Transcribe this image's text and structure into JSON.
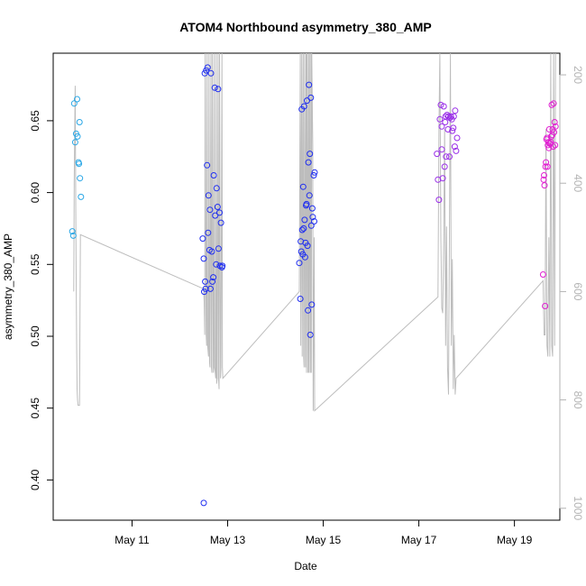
{
  "chart_data": {
    "type": "scatter",
    "title": "ATOM4 Northbound asymmetry_380_AMP",
    "xlabel": "Date",
    "ylabel": "asymmetry_380_AMP",
    "x_unit": "day of May",
    "xlim": [
      9.35,
      19.95
    ],
    "ylim": [
      0.372,
      0.697
    ],
    "x_ticks": [
      11,
      13,
      15,
      17,
      19
    ],
    "x_tick_labels": [
      "May 11",
      "May 13",
      "May 15",
      "May 17",
      "May 19"
    ],
    "y_ticks": [
      0.4,
      0.45,
      0.5,
      0.55,
      0.6,
      0.65
    ],
    "y_tick_labels": [
      "0.40",
      "0.45",
      "0.50",
      "0.55",
      "0.60",
      "0.65"
    ],
    "y2_lim": [
      1022,
      160
    ],
    "y2_ticks": [
      200,
      400,
      600,
      800,
      1000
    ],
    "y2_tick_labels": [
      "200",
      "400",
      "600",
      "800",
      "1000"
    ],
    "grid": false,
    "legend": "none",
    "colors": {
      "series": [
        "#29a7e6",
        "#1f2ef0",
        "#9a2ee8",
        "#e11fd2"
      ],
      "secondary_line": "#bdbdbd",
      "axis": "#000000",
      "axis_right": "#b3b3b3"
    },
    "series": [
      {
        "color": "#29a7e6",
        "x": [
          9.75,
          9.77,
          9.79,
          9.81,
          9.83,
          9.85,
          9.86,
          9.88,
          9.89,
          9.9,
          9.91,
          9.93
        ],
        "y": [
          0.573,
          0.57,
          0.662,
          0.635,
          0.641,
          0.665,
          0.639,
          0.621,
          0.62,
          0.649,
          0.61,
          0.597
        ]
      },
      {
        "color": "#1f2ef0",
        "x": [
          12.48,
          12.5,
          12.51,
          12.52,
          12.53,
          12.54,
          12.55,
          12.57,
          12.58,
          12.59,
          12.6,
          12.62,
          12.63,
          12.64,
          12.65,
          12.67,
          12.68,
          12.7,
          12.71,
          12.73,
          12.74,
          12.76,
          12.77,
          12.79,
          12.8,
          12.81,
          12.83,
          12.84,
          12.86,
          12.88,
          12.89,
          12.5,
          14.5,
          14.52,
          14.53,
          14.55,
          14.56,
          14.57,
          14.58,
          14.6,
          14.61,
          14.62,
          14.63,
          14.64,
          14.65,
          14.66,
          14.67,
          14.68,
          14.69,
          14.7,
          14.71,
          14.72,
          14.73,
          14.74,
          14.75,
          14.76,
          14.77,
          14.78,
          14.8,
          14.81,
          14.82,
          14.54,
          14.59
        ],
        "y": [
          0.568,
          0.554,
          0.531,
          0.683,
          0.538,
          0.533,
          0.685,
          0.619,
          0.687,
          0.572,
          0.598,
          0.56,
          0.588,
          0.533,
          0.683,
          0.559,
          0.538,
          0.541,
          0.612,
          0.673,
          0.584,
          0.55,
          0.603,
          0.59,
          0.672,
          0.561,
          0.586,
          0.549,
          0.579,
          0.548,
          0.549,
          0.384,
          0.551,
          0.526,
          0.566,
          0.658,
          0.574,
          0.557,
          0.604,
          0.66,
          0.581,
          0.555,
          0.565,
          0.591,
          0.592,
          0.664,
          0.563,
          0.518,
          0.621,
          0.675,
          0.598,
          0.627,
          0.501,
          0.666,
          0.577,
          0.522,
          0.589,
          0.583,
          0.612,
          0.58,
          0.614,
          0.559,
          0.575
        ]
      },
      {
        "color": "#9a2ee8",
        "x": [
          17.38,
          17.4,
          17.42,
          17.44,
          17.46,
          17.48,
          17.5,
          17.52,
          17.54,
          17.55,
          17.57,
          17.59,
          17.61,
          17.62,
          17.64,
          17.65,
          17.67,
          17.69,
          17.7,
          17.72,
          17.73,
          17.75,
          17.76,
          17.78,
          17.8,
          17.48,
          17.56
        ],
        "y": [
          0.627,
          0.609,
          0.595,
          0.651,
          0.661,
          0.646,
          0.61,
          0.66,
          0.618,
          0.649,
          0.625,
          0.654,
          0.644,
          0.653,
          0.625,
          0.652,
          0.653,
          0.651,
          0.643,
          0.645,
          0.653,
          0.632,
          0.657,
          0.629,
          0.638,
          0.63,
          0.653
        ]
      },
      {
        "color": "#e11fd2",
        "x": [
          19.6,
          19.61,
          19.62,
          19.63,
          19.64,
          19.65,
          19.66,
          19.67,
          19.68,
          19.69,
          19.7,
          19.71,
          19.72,
          19.73,
          19.74,
          19.75,
          19.76,
          19.77,
          19.78,
          19.79,
          19.8,
          19.81,
          19.82,
          19.83,
          19.84,
          19.85,
          19.86
        ],
        "y": [
          0.543,
          0.609,
          0.612,
          0.605,
          0.521,
          0.618,
          0.621,
          0.637,
          0.638,
          0.618,
          0.633,
          0.635,
          0.631,
          0.644,
          0.634,
          0.634,
          0.635,
          0.639,
          0.661,
          0.64,
          0.644,
          0.632,
          0.662,
          0.642,
          0.649,
          0.633,
          0.646
        ]
      }
    ],
    "secondary_line": {
      "x": [
        9.78,
        9.79,
        9.8,
        9.81,
        9.82,
        9.83,
        9.84,
        9.85,
        9.86,
        9.87,
        9.88,
        9.9,
        9.92,
        12.5,
        12.51,
        12.52,
        12.53,
        12.55,
        12.56,
        12.57,
        12.58,
        12.6,
        12.61,
        12.62,
        12.63,
        12.65,
        12.66,
        12.67,
        12.68,
        12.7,
        12.71,
        12.72,
        12.73,
        12.75,
        12.76,
        12.77,
        12.78,
        12.8,
        12.81,
        12.82,
        12.83,
        12.85,
        12.86,
        12.88,
        12.89,
        12.9,
        14.5,
        14.52,
        14.53,
        14.55,
        14.56,
        14.58,
        14.59,
        14.6,
        14.61,
        14.63,
        14.64,
        14.65,
        14.66,
        14.68,
        14.69,
        14.7,
        14.71,
        14.73,
        14.74,
        14.75,
        14.76,
        14.78,
        14.79,
        14.81,
        14.82,
        17.4,
        17.42,
        17.44,
        17.46,
        17.48,
        17.5,
        17.52,
        17.54,
        17.56,
        17.58,
        17.6,
        17.62,
        17.64,
        17.66,
        17.68,
        17.7,
        17.72,
        17.74,
        17.76,
        17.78,
        19.6,
        19.62,
        19.64,
        19.66,
        19.68,
        19.7,
        19.72,
        19.74,
        19.76,
        19.78,
        19.8,
        19.82,
        19.84,
        19.86
      ],
      "y": [
        600,
        400,
        300,
        220,
        400,
        550,
        700,
        780,
        800,
        810,
        810,
        810,
        495,
        595,
        620,
        680,
        160,
        680,
        700,
        160,
        700,
        720,
        160,
        730,
        740,
        160,
        740,
        750,
        160,
        750,
        740,
        160,
        740,
        760,
        160,
        770,
        760,
        160,
        760,
        780,
        160,
        760,
        740,
        160,
        740,
        760,
        600,
        160,
        700,
        160,
        720,
        160,
        720,
        740,
        160,
        740,
        160,
        750,
        160,
        750,
        160,
        750,
        160,
        750,
        160,
        750,
        160,
        330,
        820,
        500,
        820,
        610,
        300,
        160,
        500,
        630,
        640,
        500,
        300,
        700,
        480,
        740,
        790,
        500,
        160,
        700,
        540,
        780,
        680,
        790,
        760,
        580,
        680,
        680,
        300,
        700,
        720,
        500,
        720,
        160,
        700,
        720,
        160,
        700,
        160
      ]
    }
  }
}
